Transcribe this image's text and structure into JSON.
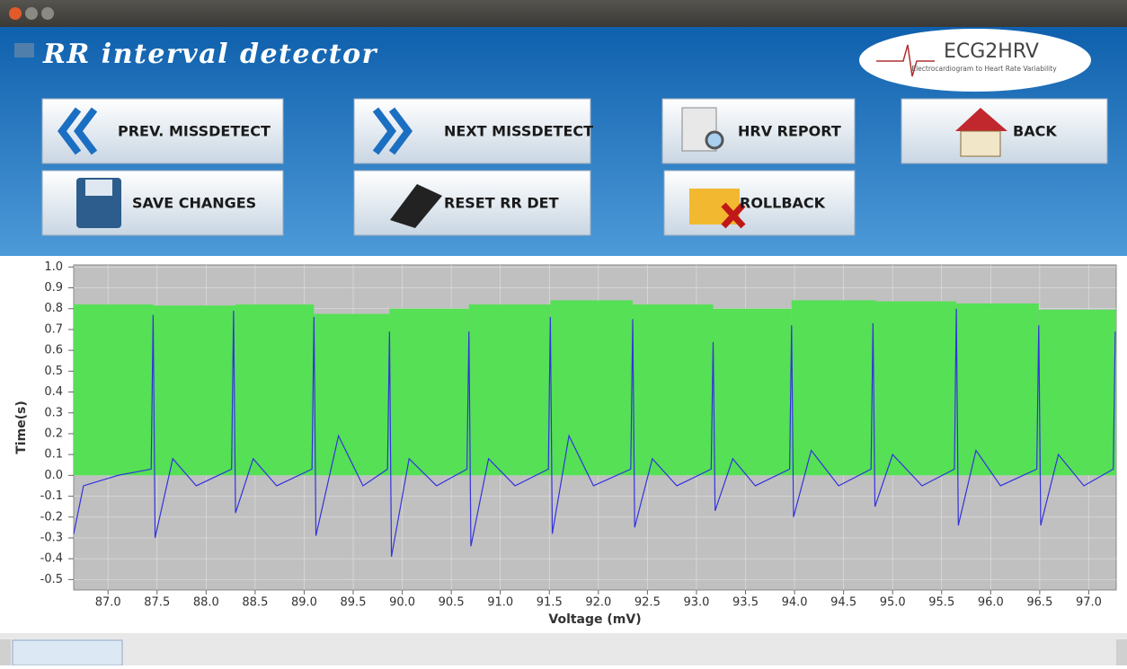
{
  "window": {
    "title": "RR interval detector",
    "logo": {
      "title": "ECG2HRV",
      "subtitle": "Electrocardiogram to Heart Rate Variability"
    }
  },
  "buttons": [
    {
      "label": "PREV. MISSDETECT"
    },
    {
      "label": "NEXT MISSDETECT"
    },
    {
      "label": "HRV REPORT"
    },
    {
      "label": "BACK"
    },
    {
      "label": "SAVE CHANGES"
    },
    {
      "label": "RESET RR DET"
    },
    {
      "label": "ROLLBACK"
    }
  ],
  "chart_data": {
    "type": "line",
    "xlabel": "Voltage (mV)",
    "ylabel": "Time(s)",
    "xlim": [
      86.65,
      97.28
    ],
    "ylim": [
      -0.55,
      1.01
    ],
    "xticks": [
      {
        "value": 87,
        "label": "87.0"
      },
      87.5,
      {
        "value": 88,
        "label": "88.0"
      },
      88.5,
      {
        "value": 89,
        "label": "89.0"
      },
      89.5,
      {
        "value": 90,
        "label": "90.0"
      },
      90.5,
      {
        "value": 91,
        "label": "91.0"
      },
      91.5,
      {
        "value": 92,
        "label": "92.0"
      },
      92.5,
      {
        "value": 93,
        "label": "93.0"
      },
      93.5,
      {
        "value": 94,
        "label": "94.0"
      },
      94.5,
      {
        "value": 95,
        "label": "95.0"
      },
      95.5,
      {
        "value": 96,
        "label": "96.0"
      },
      96.5,
      {
        "value": 97,
        "label": "97.0"
      }
    ],
    "yticks": [
      {
        "value": 1,
        "label": "1.0"
      },
      0.9,
      0.8,
      0.7,
      0.6,
      0.5,
      0.4,
      0.3,
      0.2,
      0.1,
      {
        "value": 0,
        "label": "0.0"
      },
      -0.1,
      -0.2,
      -0.3,
      -0.4,
      -0.5
    ],
    "grid": true,
    "rr": {
      "color": "#55e055",
      "edges": [
        86.65,
        87.46,
        88.3,
        89.1,
        89.87,
        90.68,
        91.51,
        92.35,
        93.17,
        93.97,
        94.83,
        95.65,
        96.49,
        97.28
      ],
      "values": [
        0.82,
        0.815,
        0.82,
        0.775,
        0.8,
        0.82,
        0.84,
        0.82,
        0.8,
        0.84,
        0.835,
        0.825,
        0.795
      ]
    },
    "ecg": {
      "color": "#3333dd",
      "x": [
        86.65,
        86.75,
        87.1,
        87.44,
        87.46,
        87.48,
        87.66,
        87.9,
        88.26,
        88.28,
        88.3,
        88.48,
        88.72,
        89.08,
        89.1,
        89.12,
        89.35,
        89.6,
        89.85,
        89.87,
        89.89,
        90.07,
        90.35,
        90.66,
        90.68,
        90.7,
        90.88,
        91.15,
        91.49,
        91.51,
        91.53,
        91.7,
        91.95,
        92.33,
        92.35,
        92.37,
        92.55,
        92.8,
        93.15,
        93.17,
        93.19,
        93.37,
        93.6,
        93.95,
        93.97,
        93.99,
        94.17,
        94.45,
        94.78,
        94.8,
        94.82,
        95,
        95.3,
        95.63,
        95.65,
        95.67,
        95.85,
        96.1,
        96.47,
        96.49,
        96.51,
        96.69,
        96.95,
        97.25,
        97.27
      ],
      "values": [
        -0.28,
        -0.05,
        0,
        0.03,
        0.77,
        -0.3,
        0.08,
        -0.05,
        0.03,
        0.79,
        -0.18,
        0.08,
        -0.05,
        0.03,
        0.76,
        -0.29,
        0.19,
        -0.05,
        0.03,
        0.69,
        -0.39,
        0.08,
        -0.05,
        0.03,
        0.69,
        -0.34,
        0.08,
        -0.05,
        0.03,
        0.76,
        -0.28,
        0.19,
        -0.05,
        0.03,
        0.75,
        -0.25,
        0.08,
        -0.05,
        0.03,
        0.64,
        -0.17,
        0.08,
        -0.05,
        0.03,
        0.72,
        -0.2,
        0.12,
        -0.05,
        0.03,
        0.73,
        -0.15,
        0.1,
        -0.05,
        0.03,
        0.8,
        -0.24,
        0.12,
        -0.05,
        0.03,
        0.72,
        -0.24,
        0.1,
        -0.05,
        0.03,
        0.69
      ]
    }
  }
}
